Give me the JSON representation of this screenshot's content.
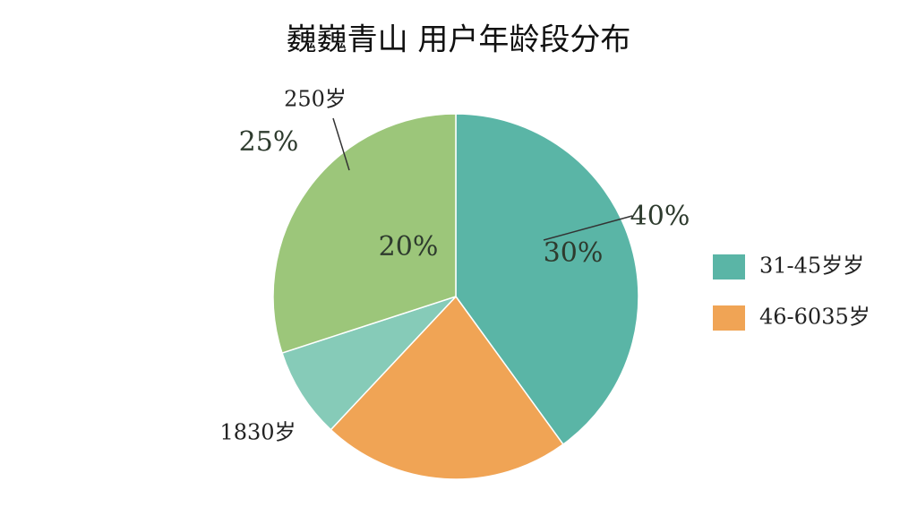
{
  "chart_data": {
    "type": "pie",
    "title": "巍巍青山 用户年龄段分布",
    "categories": [
      "31-45岁岁",
      "46-6035岁",
      null,
      null
    ],
    "values": [
      40,
      22,
      8,
      30
    ],
    "colors": [
      "#5ab5a6",
      "#f0a455",
      "#86cbb8",
      "#9cc67a"
    ],
    "annotations": [
      "40%",
      "30%",
      "20%",
      "25%",
      "250岁",
      "1830岁"
    ],
    "legend": "right"
  }
}
